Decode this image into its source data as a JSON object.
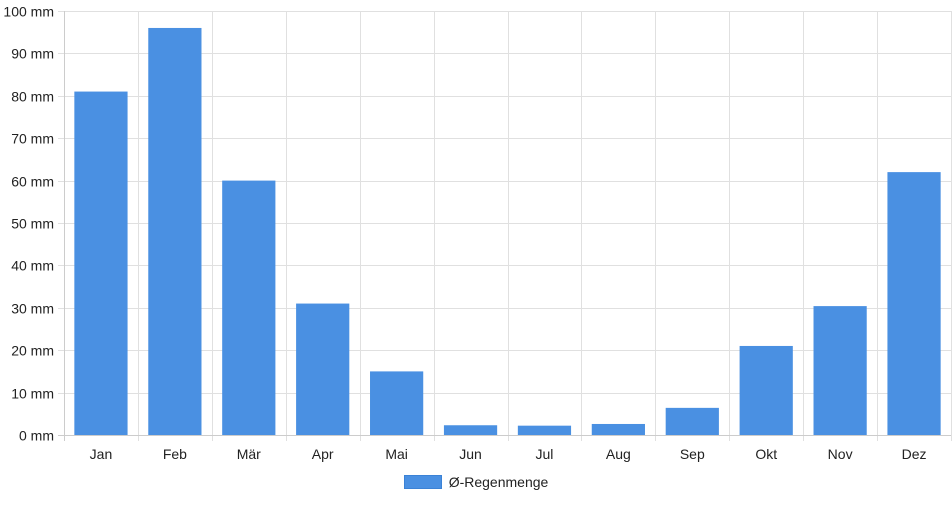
{
  "chart_data": {
    "type": "bar",
    "categories": [
      "Jan",
      "Feb",
      "Mär",
      "Apr",
      "Mai",
      "Jun",
      "Jul",
      "Aug",
      "Sep",
      "Okt",
      "Nov",
      "Dez"
    ],
    "series": [
      {
        "name": "Ø-Regenmenge",
        "values": [
          81,
          96,
          60,
          31,
          15,
          2.3,
          2.2,
          2.6,
          6.4,
          21,
          30.4,
          62
        ]
      }
    ],
    "ylim": [
      0,
      100
    ],
    "y_ticks": [
      "0 mm",
      "10 mm",
      "20 mm",
      "30 mm",
      "40 mm",
      "50 mm",
      "60 mm",
      "70 mm",
      "80 mm",
      "90 mm",
      "100 mm"
    ],
    "grid": true,
    "legend_position": "bottom",
    "colors": {
      "bar": "#4a90e2",
      "grid": "#e0e0e0",
      "axis": "#cccccc"
    }
  }
}
